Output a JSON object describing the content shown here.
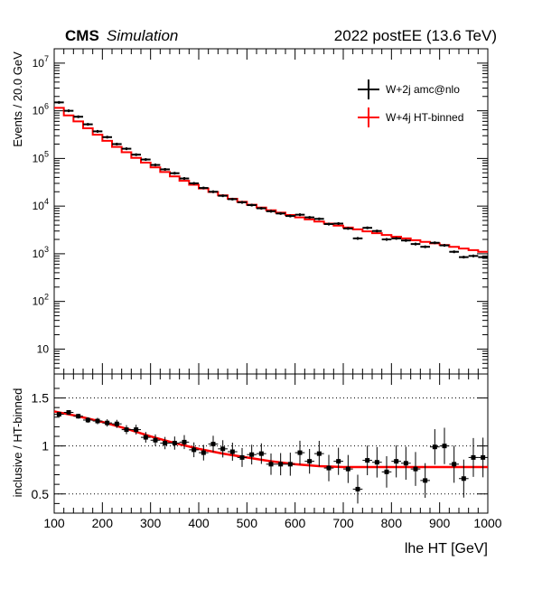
{
  "header": {
    "experiment": "CMS",
    "tag": "Simulation",
    "run_label": "2022 postEE (13.6 TeV)"
  },
  "chart_data": [
    {
      "type": "line",
      "panel": "main",
      "ylabel": "Events / 20.0 GeV",
      "xlim": [
        100,
        1000
      ],
      "ylim": [
        3,
        20000000
      ],
      "yscale": "log",
      "y_tick_labels": [
        "10",
        "10^2",
        "10^3",
        "10^4",
        "10^5",
        "10^6",
        "10^7"
      ],
      "legend_position": "top-right",
      "x": [
        110,
        130,
        150,
        170,
        190,
        210,
        230,
        250,
        270,
        290,
        310,
        330,
        350,
        370,
        390,
        410,
        430,
        450,
        470,
        490,
        510,
        530,
        550,
        570,
        590,
        610,
        630,
        650,
        670,
        690,
        710,
        730,
        750,
        770,
        790,
        810,
        830,
        850,
        870,
        890,
        910,
        930,
        950,
        970,
        990
      ],
      "series": [
        {
          "name": "W+2j amc@nlo",
          "color": "#000000",
          "style": "points",
          "values": [
            1500000,
            1000000,
            750000,
            520000,
            370000,
            280000,
            200000,
            160000,
            120000,
            95000,
            73000,
            59000,
            49000,
            38000,
            30000,
            24000,
            20000,
            16500,
            14000,
            12000,
            10500,
            9000,
            7800,
            7000,
            6200,
            6600,
            5800,
            5400,
            4200,
            4300,
            3400,
            2100,
            3500,
            3000,
            2000,
            2100,
            1900,
            1600,
            1400,
            1700,
            1500,
            1100,
            850,
            900,
            850
          ]
        },
        {
          "name": "W+4j HT-binned",
          "color": "#ff0000",
          "style": "step",
          "values": [
            1150000,
            800000,
            600000,
            430000,
            315000,
            235000,
            175000,
            135000,
            103000,
            82000,
            65000,
            52000,
            42000,
            34000,
            28000,
            23500,
            19800,
            16800,
            14300,
            12300,
            10700,
            9300,
            8200,
            7300,
            6500,
            5800,
            5250,
            4750,
            4300,
            3900,
            3550,
            3250,
            2950,
            2700,
            2480,
            2280,
            2100,
            1930,
            1780,
            1650,
            1520,
            1400,
            1290,
            1190,
            1100
          ]
        }
      ]
    },
    {
      "type": "scatter",
      "panel": "ratio",
      "xlabel": "lhe HT  [GeV]",
      "ylabel": "inclusive / HT-binned",
      "xlim": [
        100,
        1000
      ],
      "ylim": [
        0.3,
        1.75
      ],
      "x_ticks": [
        100,
        200,
        300,
        400,
        500,
        600,
        700,
        800,
        900,
        1000
      ],
      "y_ticks": [
        0.5,
        1,
        1.5
      ],
      "grid": "dotted horizontal at 0.5, 1, 1.5",
      "x": [
        110,
        130,
        150,
        170,
        190,
        210,
        230,
        250,
        270,
        290,
        310,
        330,
        350,
        370,
        390,
        410,
        430,
        450,
        470,
        490,
        510,
        530,
        550,
        570,
        590,
        610,
        630,
        650,
        670,
        690,
        710,
        730,
        750,
        770,
        790,
        810,
        830,
        850,
        870,
        890,
        910,
        930,
        950,
        970,
        990
      ],
      "points": [
        1.33,
        1.35,
        1.31,
        1.27,
        1.26,
        1.24,
        1.23,
        1.17,
        1.17,
        1.09,
        1.06,
        1.03,
        1.03,
        1.04,
        0.96,
        0.93,
        1.02,
        0.97,
        0.94,
        0.88,
        0.91,
        0.92,
        0.81,
        0.81,
        0.81,
        0.93,
        0.84,
        0.92,
        0.77,
        0.84,
        0.76,
        0.55,
        0.85,
        0.83,
        0.73,
        0.84,
        0.82,
        0.76,
        0.64,
        0.99,
        1.0,
        0.81,
        0.66,
        0.88,
        0.88
      ],
      "fit_x": [
        100,
        150,
        200,
        250,
        300,
        350,
        400,
        450,
        500,
        550,
        600,
        650,
        700,
        750,
        800,
        850,
        900,
        950,
        1000
      ],
      "fit_y": [
        1.36,
        1.31,
        1.25,
        1.18,
        1.1,
        1.03,
        0.97,
        0.92,
        0.88,
        0.84,
        0.81,
        0.79,
        0.78,
        0.78,
        0.78,
        0.78,
        0.78,
        0.78,
        0.78
      ]
    }
  ]
}
